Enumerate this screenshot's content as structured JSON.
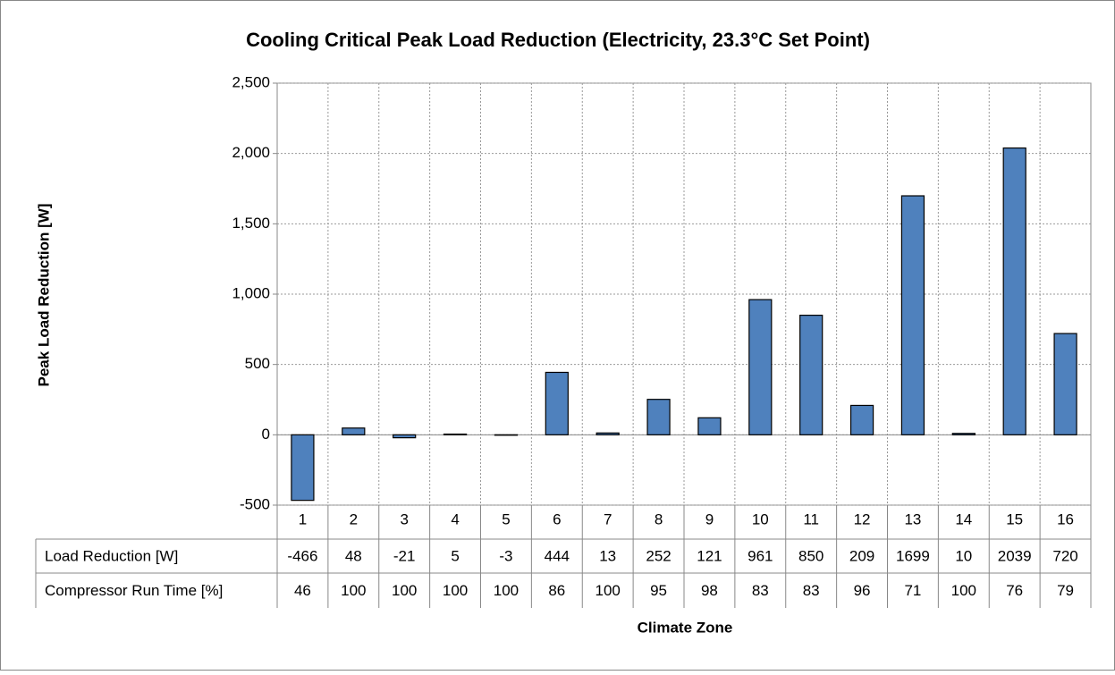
{
  "chart_data": {
    "type": "bar",
    "title": "Cooling Critical Peak Load Reduction (Electricity, 23.3°C Set Point)",
    "y_label": "Peak Load Reduction [W]",
    "x_label": "Climate Zone",
    "categories": [
      "1",
      "2",
      "3",
      "4",
      "5",
      "6",
      "7",
      "8",
      "9",
      "10",
      "11",
      "12",
      "13",
      "14",
      "15",
      "16"
    ],
    "series": [
      {
        "name": "Load Reduction [W]",
        "color": "#4f81bd",
        "values": [
          -466,
          48,
          -21,
          5,
          -3,
          444,
          13,
          252,
          121,
          961,
          850,
          209,
          1699,
          10,
          2039,
          720
        ]
      }
    ],
    "data_table_rows": [
      {
        "name": "Compressor Run Time [%]",
        "values": [
          46,
          100,
          100,
          100,
          100,
          86,
          100,
          95,
          98,
          83,
          83,
          96,
          71,
          100,
          76,
          79
        ]
      }
    ],
    "ylim": [
      -500,
      2500
    ],
    "yticks": [
      -500,
      0,
      500,
      {
        "value": 1000,
        "label": "1,000"
      },
      {
        "value": 1500,
        "label": "1,500"
      },
      {
        "value": 2000,
        "label": "2,000"
      },
      {
        "value": 2500,
        "label": "2,500"
      }
    ],
    "grid": true
  }
}
